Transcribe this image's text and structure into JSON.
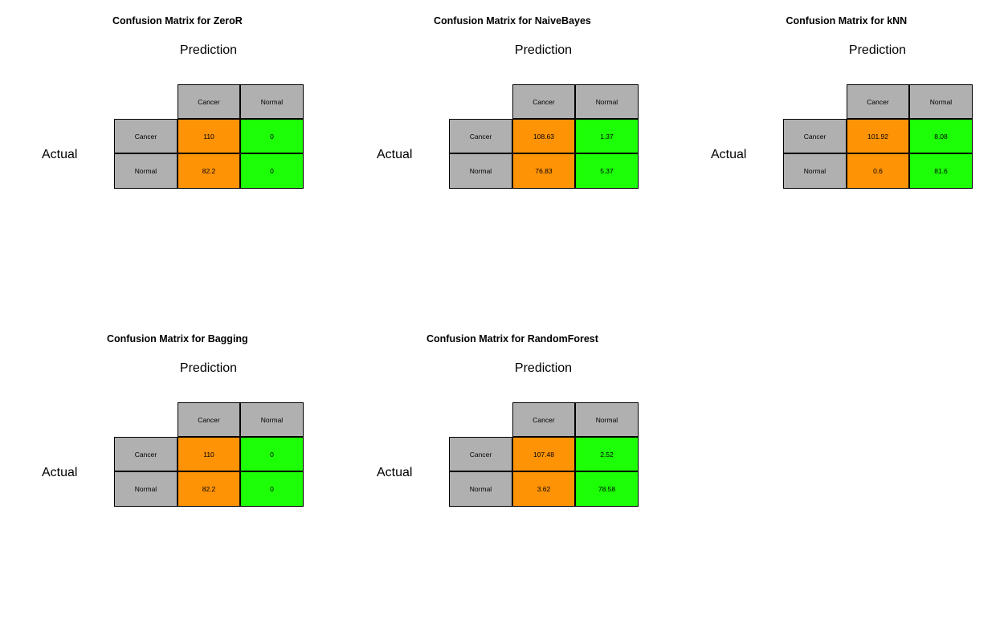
{
  "chart_data": [
    {
      "type": "table",
      "title": "Confusion Matrix for ZeroR",
      "xlabel": "Prediction",
      "ylabel": "Actual",
      "col_labels": [
        "Cancer",
        "Normal"
      ],
      "row_labels": [
        "Cancer",
        "Normal"
      ],
      "values": [
        [
          "110",
          "0"
        ],
        [
          "82.2",
          "0"
        ]
      ]
    },
    {
      "type": "table",
      "title": "Confusion Matrix for NaiveBayes",
      "xlabel": "Prediction",
      "ylabel": "Actual",
      "col_labels": [
        "Cancer",
        "Normal"
      ],
      "row_labels": [
        "Cancer",
        "Normal"
      ],
      "values": [
        [
          "108.63",
          "1.37"
        ],
        [
          "76.83",
          "5.37"
        ]
      ]
    },
    {
      "type": "table",
      "title": "Confusion Matrix for kNN",
      "xlabel": "Prediction",
      "ylabel": "Actual",
      "col_labels": [
        "Cancer",
        "Normal"
      ],
      "row_labels": [
        "Cancer",
        "Normal"
      ],
      "values": [
        [
          "101.92",
          "8.08"
        ],
        [
          "0.6",
          "81.6"
        ]
      ]
    },
    {
      "type": "table",
      "title": "Confusion Matrix for Bagging",
      "xlabel": "Prediction",
      "ylabel": "Actual",
      "col_labels": [
        "Cancer",
        "Normal"
      ],
      "row_labels": [
        "Cancer",
        "Normal"
      ],
      "values": [
        [
          "110",
          "0"
        ],
        [
          "82.2",
          "0"
        ]
      ]
    },
    {
      "type": "table",
      "title": "Confusion Matrix for RandomForest",
      "xlabel": "Prediction",
      "ylabel": "Actual",
      "col_labels": [
        "Cancer",
        "Normal"
      ],
      "row_labels": [
        "Cancer",
        "Normal"
      ],
      "values": [
        [
          "107.48",
          "2.52"
        ],
        [
          "3.62",
          "78.58"
        ]
      ]
    }
  ],
  "colors": {
    "header": "#b0b0b0",
    "cancer_column": "#ff9306",
    "normal_column": "#1cff06",
    "border": "#000000"
  }
}
